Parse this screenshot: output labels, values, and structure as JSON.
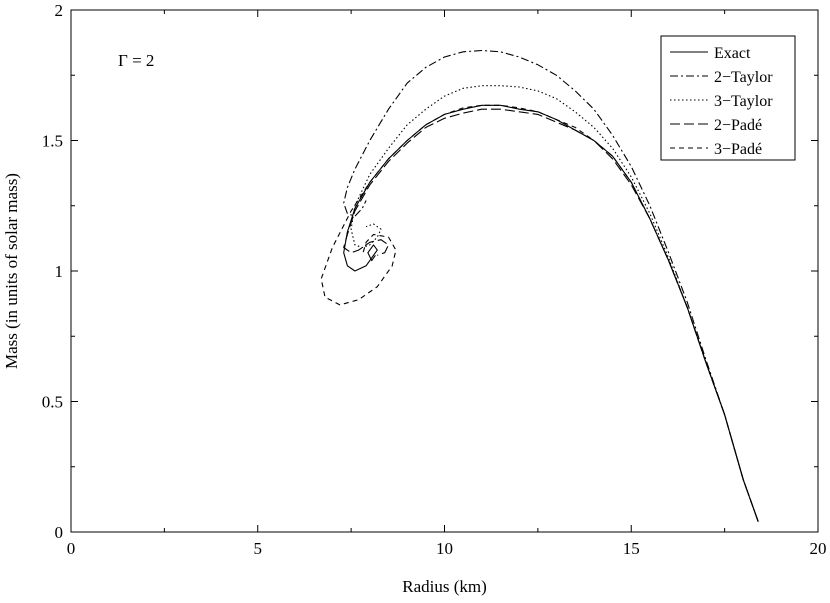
{
  "chart_data": {
    "type": "line",
    "title": "",
    "annotation": "Γ = 2",
    "xlabel": "Radius (km)",
    "ylabel": "Mass (in units of solar mass)",
    "xlim": [
      0,
      20
    ],
    "ylim": [
      0,
      2
    ],
    "xticks": [
      0,
      5,
      10,
      15,
      20
    ],
    "yticks": [
      0,
      0.5,
      1,
      1.5,
      2
    ],
    "ytick_labels": [
      "0",
      "0.5",
      "1",
      "1.5",
      "2"
    ],
    "grid": false,
    "legend_position": "top-right",
    "series": [
      {
        "name": "Exact",
        "dash": "solid",
        "points": [
          [
            18.4,
            0.04
          ],
          [
            18.0,
            0.2
          ],
          [
            17.5,
            0.45
          ],
          [
            17.0,
            0.65
          ],
          [
            16.5,
            0.86
          ],
          [
            16.0,
            1.04
          ],
          [
            15.5,
            1.2
          ],
          [
            15.0,
            1.34
          ],
          [
            14.5,
            1.44
          ],
          [
            14.0,
            1.5
          ],
          [
            13.5,
            1.54
          ],
          [
            13.0,
            1.58
          ],
          [
            12.5,
            1.61
          ],
          [
            12.0,
            1.62
          ],
          [
            11.5,
            1.635
          ],
          [
            11.0,
            1.635
          ],
          [
            10.5,
            1.62
          ],
          [
            10.0,
            1.6
          ],
          [
            9.5,
            1.56
          ],
          [
            9.0,
            1.5
          ],
          [
            8.5,
            1.43
          ],
          [
            8.0,
            1.34
          ],
          [
            7.6,
            1.24
          ],
          [
            7.4,
            1.15
          ],
          [
            7.3,
            1.07
          ],
          [
            7.4,
            1.02
          ],
          [
            7.6,
            1.0
          ],
          [
            7.9,
            1.02
          ],
          [
            8.1,
            1.06
          ],
          [
            8.2,
            1.08
          ],
          [
            8.1,
            1.1
          ],
          [
            7.95,
            1.07
          ],
          [
            8.05,
            1.04
          ],
          [
            8.15,
            1.06
          ]
        ]
      },
      {
        "name": "2−Taylor",
        "dash": "dashdot",
        "points": [
          [
            18.4,
            0.04
          ],
          [
            18.0,
            0.2
          ],
          [
            17.5,
            0.45
          ],
          [
            17.0,
            0.66
          ],
          [
            16.5,
            0.88
          ],
          [
            16.0,
            1.07
          ],
          [
            15.5,
            1.25
          ],
          [
            15.0,
            1.4
          ],
          [
            14.5,
            1.52
          ],
          [
            14.0,
            1.62
          ],
          [
            13.5,
            1.69
          ],
          [
            13.0,
            1.75
          ],
          [
            12.5,
            1.79
          ],
          [
            12.0,
            1.82
          ],
          [
            11.5,
            1.84
          ],
          [
            11.0,
            1.845
          ],
          [
            10.5,
            1.84
          ],
          [
            10.0,
            1.82
          ],
          [
            9.5,
            1.78
          ],
          [
            9.0,
            1.72
          ],
          [
            8.5,
            1.62
          ],
          [
            8.0,
            1.5
          ],
          [
            7.6,
            1.39
          ],
          [
            7.4,
            1.32
          ],
          [
            7.3,
            1.26
          ],
          [
            7.4,
            1.22
          ],
          [
            7.6,
            1.21
          ],
          [
            7.8,
            1.24
          ],
          [
            7.9,
            1.27
          ]
        ]
      },
      {
        "name": "3−Taylor",
        "dash": "dotted",
        "points": [
          [
            18.4,
            0.04
          ],
          [
            18.0,
            0.2
          ],
          [
            17.5,
            0.45
          ],
          [
            17.0,
            0.65
          ],
          [
            16.5,
            0.86
          ],
          [
            16.0,
            1.05
          ],
          [
            15.5,
            1.22
          ],
          [
            15.0,
            1.36
          ],
          [
            14.5,
            1.47
          ],
          [
            14.0,
            1.55
          ],
          [
            13.5,
            1.61
          ],
          [
            13.0,
            1.66
          ],
          [
            12.5,
            1.69
          ],
          [
            12.0,
            1.705
          ],
          [
            11.5,
            1.71
          ],
          [
            11.0,
            1.71
          ],
          [
            10.5,
            1.7
          ],
          [
            10.0,
            1.67
          ],
          [
            9.5,
            1.62
          ],
          [
            9.0,
            1.56
          ],
          [
            8.5,
            1.47
          ],
          [
            8.0,
            1.37
          ],
          [
            7.6,
            1.25
          ],
          [
            7.5,
            1.16
          ],
          [
            7.6,
            1.1
          ],
          [
            7.8,
            1.09
          ],
          [
            8.0,
            1.1
          ],
          [
            8.2,
            1.13
          ],
          [
            8.3,
            1.16
          ],
          [
            8.1,
            1.18
          ],
          [
            7.9,
            1.17
          ]
        ]
      },
      {
        "name": "2−Padé",
        "dash": "longdash",
        "points": [
          [
            18.4,
            0.04
          ],
          [
            18.0,
            0.2
          ],
          [
            17.5,
            0.45
          ],
          [
            17.0,
            0.65
          ],
          [
            16.5,
            0.86
          ],
          [
            16.0,
            1.04
          ],
          [
            15.5,
            1.2
          ],
          [
            15.0,
            1.33
          ],
          [
            14.5,
            1.43
          ],
          [
            14.0,
            1.5
          ],
          [
            13.5,
            1.54
          ],
          [
            13.0,
            1.57
          ],
          [
            12.5,
            1.6
          ],
          [
            12.0,
            1.61
          ],
          [
            11.5,
            1.62
          ],
          [
            11.0,
            1.62
          ],
          [
            10.5,
            1.605
          ],
          [
            10.0,
            1.585
          ],
          [
            9.5,
            1.55
          ],
          [
            9.0,
            1.49
          ],
          [
            8.5,
            1.42
          ],
          [
            8.0,
            1.33
          ],
          [
            7.6,
            1.23
          ],
          [
            7.4,
            1.14
          ],
          [
            7.3,
            1.09
          ],
          [
            7.5,
            1.07
          ],
          [
            7.7,
            1.08
          ],
          [
            8.0,
            1.11
          ],
          [
            8.3,
            1.12
          ],
          [
            8.5,
            1.1
          ],
          [
            8.4,
            1.07
          ],
          [
            8.2,
            1.06
          ]
        ]
      },
      {
        "name": "3−Padé",
        "dash": "dashed",
        "points": [
          [
            18.4,
            0.04
          ],
          [
            18.0,
            0.2
          ],
          [
            17.5,
            0.45
          ],
          [
            17.0,
            0.65
          ],
          [
            16.5,
            0.86
          ],
          [
            16.0,
            1.04
          ],
          [
            15.5,
            1.2
          ],
          [
            15.0,
            1.34
          ],
          [
            14.5,
            1.44
          ],
          [
            14.0,
            1.5
          ],
          [
            13.5,
            1.55
          ],
          [
            13.0,
            1.58
          ],
          [
            12.5,
            1.61
          ],
          [
            12.0,
            1.625
          ],
          [
            11.5,
            1.635
          ],
          [
            11.0,
            1.635
          ],
          [
            10.5,
            1.625
          ],
          [
            10.0,
            1.6
          ],
          [
            9.5,
            1.56
          ],
          [
            9.0,
            1.5
          ],
          [
            8.5,
            1.43
          ],
          [
            8.0,
            1.34
          ],
          [
            7.5,
            1.23
          ],
          [
            7.0,
            1.09
          ],
          [
            6.7,
            0.97
          ],
          [
            6.8,
            0.9
          ],
          [
            7.2,
            0.87
          ],
          [
            7.7,
            0.89
          ],
          [
            8.2,
            0.94
          ],
          [
            8.6,
            1.02
          ],
          [
            8.7,
            1.08
          ],
          [
            8.5,
            1.13
          ],
          [
            8.1,
            1.14
          ],
          [
            7.9,
            1.11
          ],
          [
            7.8,
            1.06
          ]
        ]
      }
    ]
  }
}
